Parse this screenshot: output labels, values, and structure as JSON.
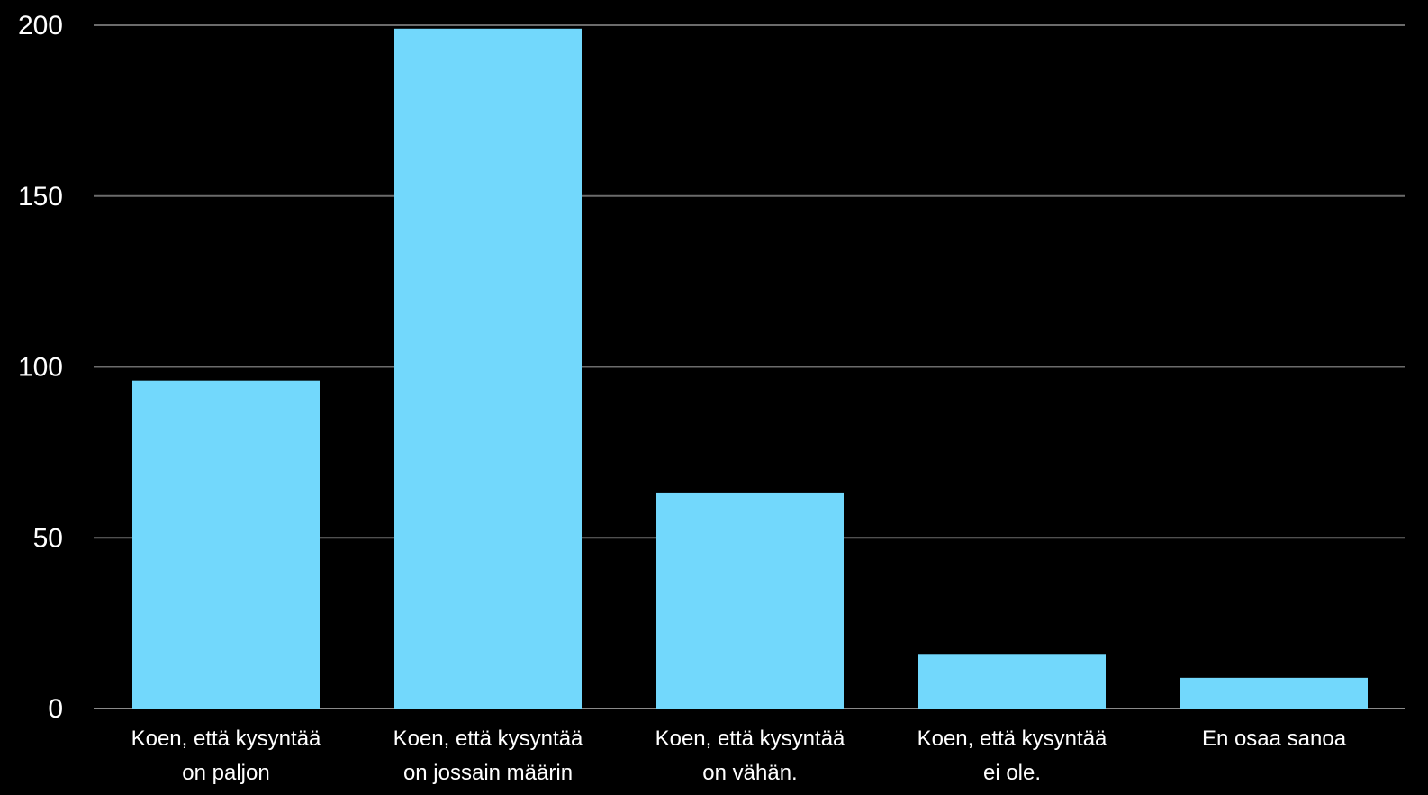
{
  "chart_data": {
    "type": "bar",
    "categories": [
      [
        "Koen, että kysyntää",
        "on paljon"
      ],
      [
        "Koen, että kysyntää",
        "on jossain määrin"
      ],
      [
        "Koen, että kysyntää",
        "on vähän."
      ],
      [
        "Koen, että kysyntää",
        "ei ole."
      ],
      [
        "En osaa sanoa"
      ]
    ],
    "values": [
      96,
      199,
      63,
      16,
      9
    ],
    "yticks": [
      "0",
      "50",
      "100",
      "150",
      "200"
    ],
    "ylim": [
      0,
      200
    ],
    "grid": true,
    "title": "",
    "xlabel": "",
    "ylabel": "",
    "colors": {
      "bar": "#72d8fc",
      "grid": "#6b6b6b",
      "axis": "#8a8a8a",
      "text": "#ffffff",
      "background": "#000000"
    }
  }
}
